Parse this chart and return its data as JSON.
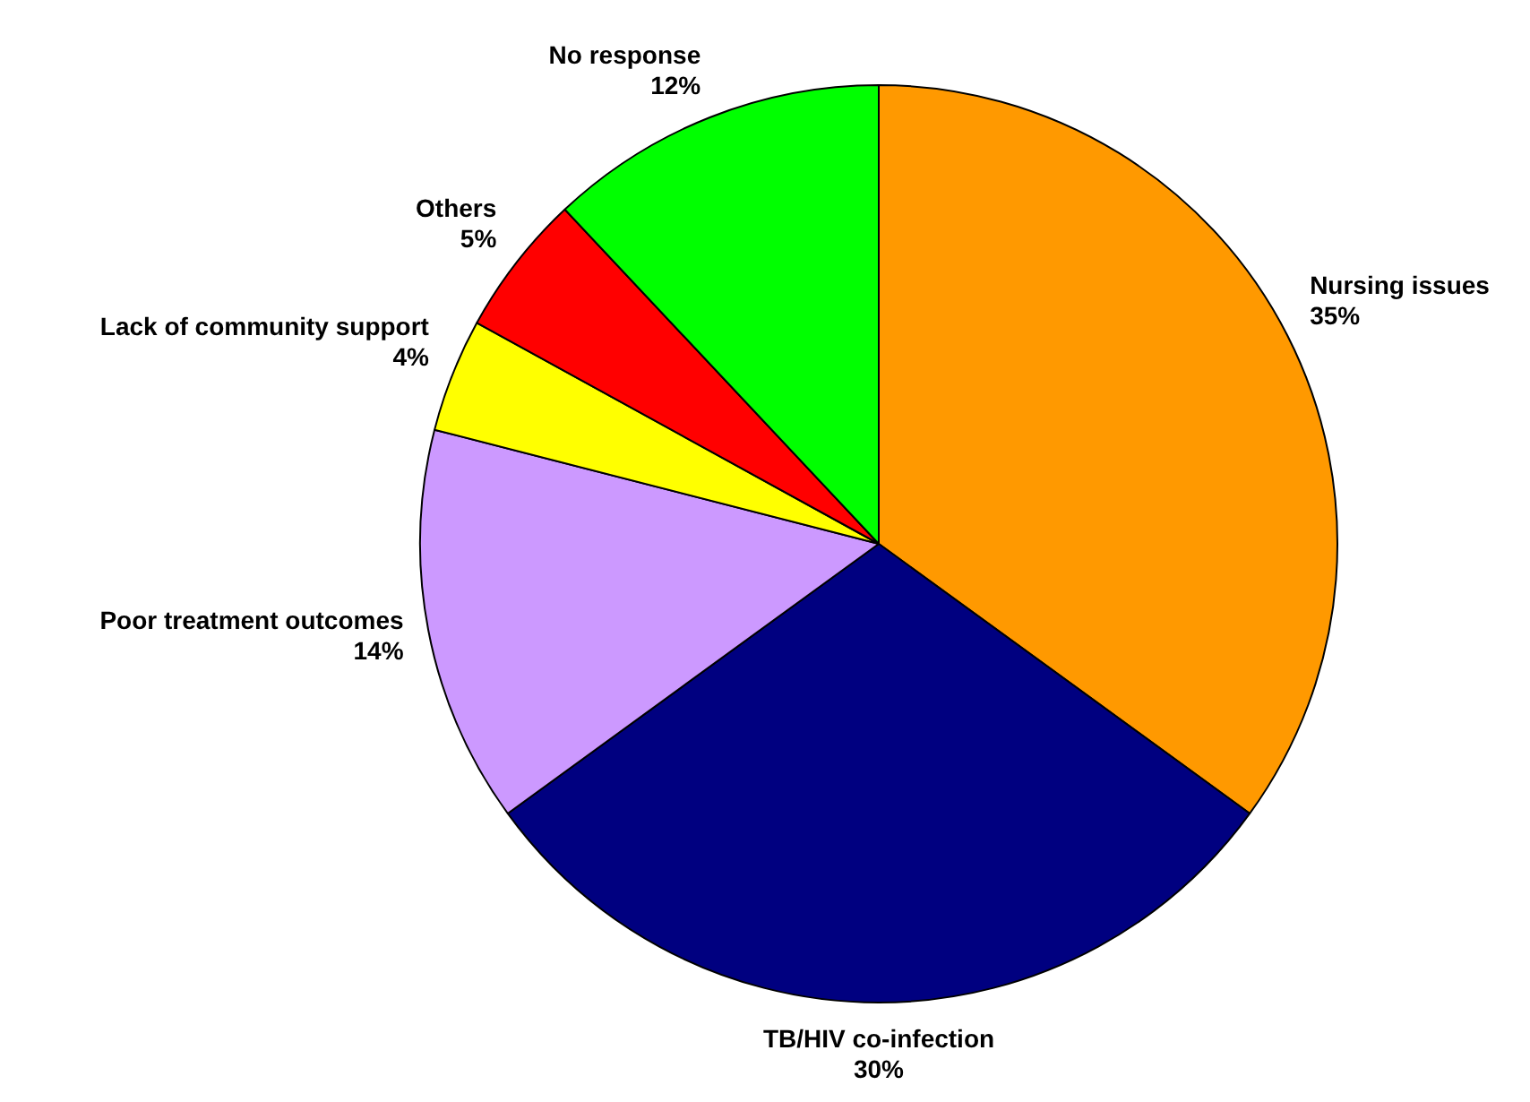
{
  "chart_data": {
    "type": "pie",
    "categories": [
      "Nursing issues",
      "TB/HIV co-infection",
      "Poor treatment outcomes",
      "Lack of community support",
      "Others",
      "No response"
    ],
    "values": [
      35,
      30,
      14,
      4,
      5,
      12
    ],
    "colors": [
      "#ff9900",
      "#000080",
      "#cc99ff",
      "#ffff00",
      "#ff0000",
      "#00ff00"
    ],
    "value_labels": [
      "35%",
      "30%",
      "14%",
      "4%",
      "5%",
      "12%"
    ]
  }
}
